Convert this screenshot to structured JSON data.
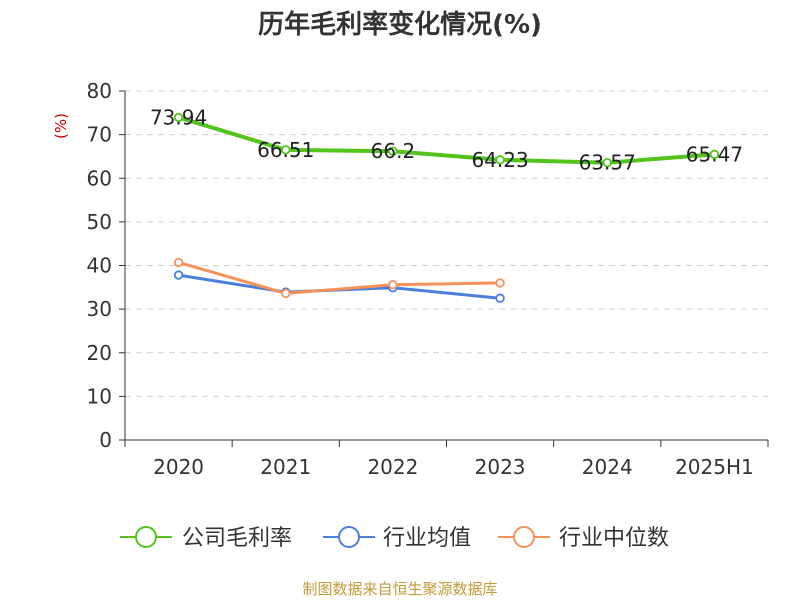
{
  "chart_data": {
    "type": "line",
    "title": "历年毛利率变化情况(%)",
    "ylabel": "(%)",
    "categories": [
      "2020",
      "2021",
      "2022",
      "2023",
      "2024",
      "2025H1"
    ],
    "ylim": [
      0,
      80
    ],
    "yticks": [
      0,
      10,
      20,
      30,
      40,
      50,
      60,
      70,
      80
    ],
    "grid": true,
    "legend_position": "bottom",
    "series": [
      {
        "name": "公司毛利率",
        "color": "#52c41a",
        "values": [
          73.94,
          66.51,
          66.2,
          64.23,
          63.57,
          65.47
        ],
        "labels": [
          "73.94",
          "66.51",
          "66.2",
          "64.23",
          "63.57",
          "65.47"
        ]
      },
      {
        "name": "行业均值",
        "color": "#4a7fdc",
        "values": [
          37.8,
          33.9,
          34.9,
          32.5,
          null,
          null
        ]
      },
      {
        "name": "行业中位数",
        "color": "#f5925c",
        "values": [
          40.7,
          33.6,
          35.6,
          36.0,
          null,
          null
        ]
      }
    ]
  },
  "footer": {
    "source": "制图数据来自恒生聚源数据库"
  }
}
